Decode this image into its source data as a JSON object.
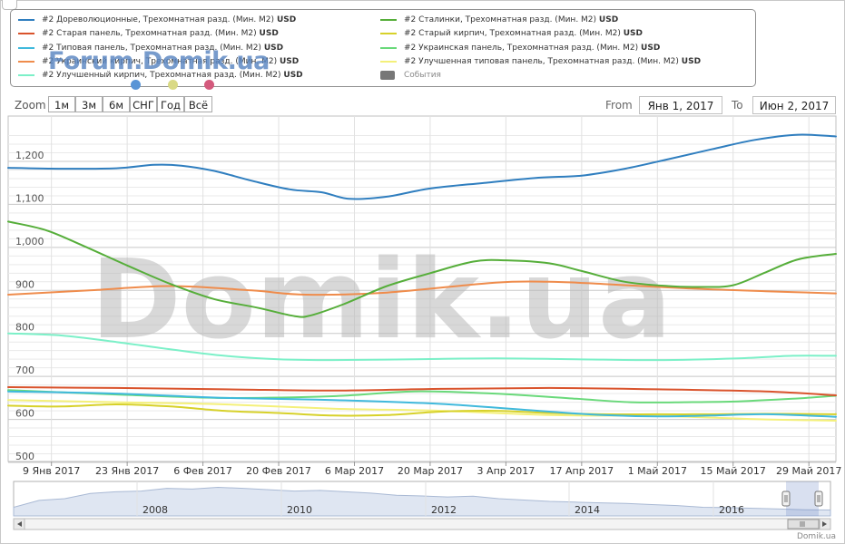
{
  "legend": {
    "items": [
      {
        "label": "#2 Дореволюционные, Трехомнатная разд. (Мин. М2)",
        "unit": "USD",
        "color": "#2f7ebf"
      },
      {
        "label": "#2 Сталинки, Трехомнатная разд. (Мин. М2)",
        "unit": "USD",
        "color": "#56ae3a"
      },
      {
        "label": "#2 Старая панель, Трехомнатная разд. (Мин. М2)",
        "unit": "USD",
        "color": "#d9532c"
      },
      {
        "label": "#2 Старый кирпич, Трехомнатная разд. (Мин. М2)",
        "unit": "USD",
        "color": "#d7d12a"
      },
      {
        "label": "#2 Типовая панель, Трехомнатная разд. (Мин. М2)",
        "unit": "USD",
        "color": "#40b9dc"
      },
      {
        "label": "#2 Украинская панель, Трехомнатная разд. (Мин. М2)",
        "unit": "USD",
        "color": "#69d97a"
      },
      {
        "label": "#2 Украинский кирпич, Трехомнатная разд. (Мин. М2)",
        "unit": "USD",
        "color": "#ef8c4c"
      },
      {
        "label": "#2 Улучшенная типовая панель, Трехомнатная разд. (Мин. М2)",
        "unit": "USD",
        "color": "#f4f07a"
      },
      {
        "label": "#2 Улучшенный кирпич, Трехомнатная разд. (Мин. М2)",
        "unit": "USD",
        "color": "#7cf0c8"
      },
      {
        "label": "События",
        "unit": "",
        "color": "#777777"
      }
    ]
  },
  "branding": {
    "forum_logo": "Forum.Domik.ua",
    "watermark": "Domik.ua",
    "credit": "Domik.ua",
    "logo_dot_colors": [
      "#5a95d6",
      "#d9d985",
      "#d45a7d"
    ]
  },
  "zoom": {
    "label": "Zoom",
    "buttons": [
      "1м",
      "3м",
      "6м",
      "СНГ",
      "Год",
      "Всё"
    ]
  },
  "range": {
    "from_label": "From",
    "from_value": "Янв 1, 2017",
    "to_label": "To",
    "to_value": "Июн 2, 2017"
  },
  "chart_data": {
    "type": "line",
    "y_ticks": [
      "1,200",
      "1,100",
      "1,000",
      "900",
      "800",
      "700",
      "600",
      "500"
    ],
    "ylim": [
      500,
      1270
    ],
    "x_ticks": [
      "9 Янв 2017",
      "23 Янв 2017",
      "6 Фев 2017",
      "20 Фев 2017",
      "6 Мар 2017",
      "20 Мар 2017",
      "3 Апр 2017",
      "17 Апр 2017",
      "1 Май 2017",
      "15 Май 2017",
      "29 Май 2017"
    ],
    "x_tick_days": [
      8,
      22,
      36,
      50,
      64,
      78,
      92,
      106,
      120,
      134,
      148
    ],
    "xlim": [
      0,
      153
    ],
    "grid": true,
    "series": [
      {
        "name": "#2 Дореволюционные, Трехомнатная разд. (Мин. М2)",
        "color": "#2f7ebf",
        "x": [
          0,
          10,
          20,
          27,
          32,
          38,
          45,
          52,
          58,
          63,
          70,
          78,
          88,
          98,
          106,
          114,
          122,
          130,
          138,
          146,
          153
        ],
        "y": [
          1185,
          1183,
          1184,
          1192,
          1190,
          1178,
          1155,
          1135,
          1128,
          1113,
          1118,
          1137,
          1150,
          1162,
          1167,
          1183,
          1205,
          1228,
          1250,
          1262,
          1258
        ]
      },
      {
        "name": "#2 Сталинки, Трехомнатная разд. (Мин. М2)",
        "color": "#56ae3a",
        "x": [
          0,
          7,
          14,
          22,
          30,
          38,
          46,
          53,
          56,
          62,
          70,
          78,
          86,
          92,
          100,
          106,
          114,
          122,
          128,
          134,
          140,
          146,
          153
        ],
        "y": [
          1060,
          1040,
          1003,
          958,
          915,
          880,
          860,
          840,
          842,
          868,
          910,
          940,
          967,
          970,
          963,
          945,
          920,
          910,
          908,
          912,
          942,
          972,
          985
        ]
      },
      {
        "name": "#2 Старая панель, Трехомнатная разд. (Мин. М2)",
        "color": "#d9532c",
        "x": [
          0,
          20,
          40,
          60,
          80,
          100,
          120,
          140,
          153
        ],
        "y": [
          675,
          673,
          670,
          667,
          671,
          673,
          670,
          665,
          656
        ]
      },
      {
        "name": "#2 Старый кирпич, Трехомнатная разд. (Мин. М2)",
        "color": "#d7d12a",
        "x": [
          0,
          10,
          20,
          30,
          40,
          50,
          60,
          70,
          80,
          90,
          100,
          110,
          120,
          130,
          140,
          153
        ],
        "y": [
          632,
          630,
          635,
          630,
          620,
          615,
          609,
          610,
          618,
          620,
          615,
          612,
          612,
          612,
          613,
          612
        ]
      },
      {
        "name": "#2 Типовая панель, Трехомнатная разд. (Мин. М2)",
        "color": "#40b9dc",
        "x": [
          0,
          20,
          40,
          60,
          80,
          100,
          110,
          120,
          130,
          140,
          153
        ],
        "y": [
          665,
          660,
          650,
          645,
          636,
          618,
          610,
          607,
          609,
          612,
          606
        ]
      },
      {
        "name": "#2 Украинская панель, Трехомнатная разд. (Мин. М2)",
        "color": "#69d97a",
        "x": [
          0,
          20,
          40,
          60,
          75,
          90,
          105,
          115,
          125,
          135,
          145,
          153
        ],
        "y": [
          668,
          658,
          650,
          654,
          665,
          660,
          648,
          640,
          640,
          642,
          648,
          655
        ]
      },
      {
        "name": "#2 Украинский кирпич, Трехомнатная разд. (Мин. М2)",
        "color": "#ef8c4c",
        "x": [
          0,
          15,
          30,
          45,
          55,
          70,
          90,
          100,
          110,
          125,
          140,
          153
        ],
        "y": [
          890,
          900,
          910,
          900,
          890,
          895,
          918,
          920,
          915,
          905,
          898,
          893
        ]
      },
      {
        "name": "#2 Улучшенная типовая панель, Трехомнатная разд. (Мин. М2)",
        "color": "#f4f07a",
        "x": [
          0,
          20,
          40,
          60,
          80,
          100,
          120,
          140,
          153
        ],
        "y": [
          645,
          640,
          635,
          625,
          620,
          610,
          608,
          600,
          597
        ]
      },
      {
        "name": "#2 Улучшенный кирпич, Трехомнатная разд. (Мин. М2)",
        "color": "#7cf0c8",
        "x": [
          0,
          10,
          20,
          30,
          40,
          50,
          60,
          75,
          90,
          105,
          120,
          135,
          145,
          153
        ],
        "y": [
          800,
          795,
          780,
          763,
          748,
          740,
          738,
          740,
          742,
          740,
          738,
          742,
          748,
          748
        ]
      }
    ],
    "watermark": "Domik.ua"
  },
  "navigator": {
    "year_labels": [
      "2008",
      "2010",
      "2012",
      "2014",
      "2016"
    ],
    "scroll_left_icon": "arrow-left-icon",
    "scroll_right_icon": "arrow-right-icon"
  }
}
